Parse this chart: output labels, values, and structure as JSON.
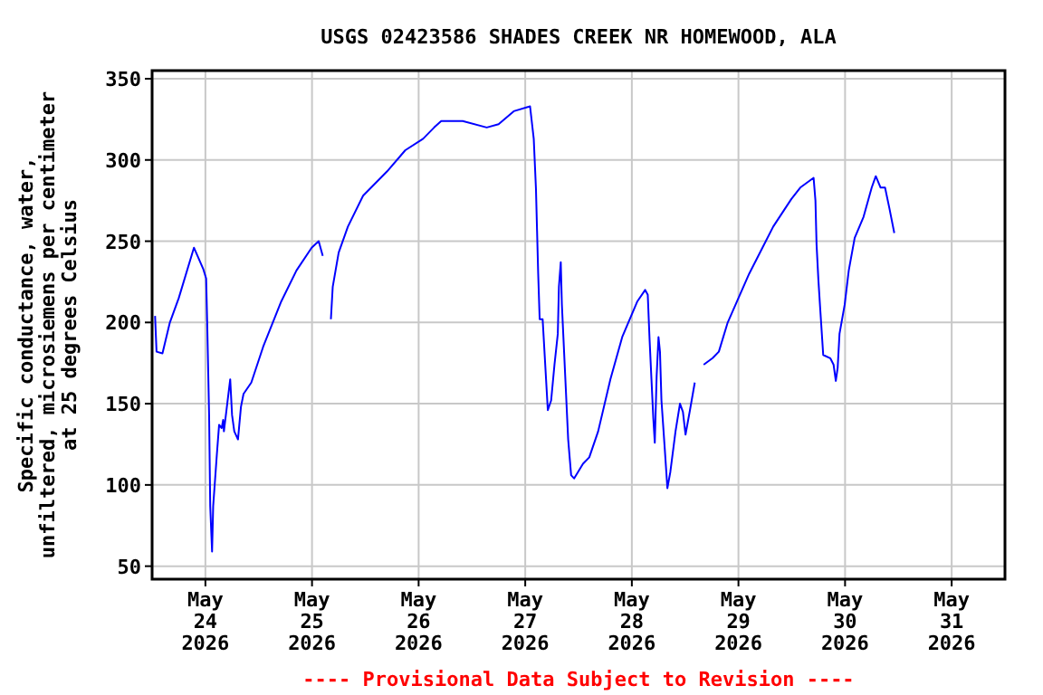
{
  "chart_data": {
    "type": "line",
    "title": "USGS 02423586 SHADES CREEK NR HOMEWOOD, ALA",
    "ylabel": "Specific conductance, water,\nunfiltered, microsiemens per centimeter\nat 25 degrees Celsius",
    "annotations": [
      "---- Provisional Data Subject to Revision ----"
    ],
    "x": [
      "2026-05-23T12:40",
      "2026-05-23T13:00",
      "2026-05-23T14:20",
      "2026-05-23T16:00",
      "2026-05-23T18:00",
      "2026-05-23T21:25",
      "2026-05-23T23:30",
      "2026-05-24T00:10",
      "2026-05-24T00:25",
      "2026-05-24T00:50",
      "2026-05-24T01:05",
      "2026-05-24T01:30",
      "2026-05-24T01:45",
      "2026-05-24T02:35",
      "2026-05-24T03:05",
      "2026-05-24T03:40",
      "2026-05-24T04:00",
      "2026-05-24T04:10",
      "2026-05-24T04:55",
      "2026-05-24T05:35",
      "2026-05-24T06:00",
      "2026-05-24T06:30",
      "2026-05-24T07:20",
      "2026-05-24T08:00",
      "2026-05-24T08:35",
      "2026-05-24T10:20",
      "2026-05-24T13:00",
      "2026-05-24T17:05",
      "2026-05-24T20:30",
      "2026-05-24T23:55",
      "2026-05-25T01:30",
      "2026-05-25T02:25",
      "2026-05-25T03:20",
      "2026-05-25T04:15",
      "2026-05-25T04:40",
      "2026-05-25T06:00",
      "2026-05-25T08:05",
      "2026-05-25T11:30",
      "2026-05-25T16:55",
      "2026-05-25T21:00",
      "2026-05-26T01:00",
      "2026-05-26T03:30",
      "2026-05-26T05:05",
      "2026-05-26T09:55",
      "2026-05-26T15:20",
      "2026-05-26T18:00",
      "2026-05-26T21:25",
      "2026-05-27T01:05",
      "2026-05-27T01:55",
      "2026-05-27T02:25",
      "2026-05-27T02:55",
      "2026-05-27T03:15",
      "2026-05-27T03:55",
      "2026-05-27T04:30",
      "2026-05-27T05:05",
      "2026-05-27T05:50",
      "2026-05-27T06:35",
      "2026-05-27T07:20",
      "2026-05-27T07:35",
      "2026-05-27T08:00",
      "2026-05-27T08:15",
      "2026-05-27T09:00",
      "2026-05-27T09:40",
      "2026-05-27T10:20",
      "2026-05-27T11:00",
      "2026-05-27T13:00",
      "2026-05-27T14:25",
      "2026-05-27T16:25",
      "2026-05-27T19:10",
      "2026-05-27T21:50",
      "2026-05-28T01:15",
      "2026-05-28T03:00",
      "2026-05-28T03:35",
      "2026-05-28T04:00",
      "2026-05-28T04:25",
      "2026-05-28T04:50",
      "2026-05-28T05:10",
      "2026-05-28T05:35",
      "2026-05-28T06:00",
      "2026-05-28T06:20",
      "2026-05-28T06:40",
      "2026-05-28T07:25",
      "2026-05-28T08:00",
      "2026-05-28T08:40",
      "2026-05-28T09:50",
      "2026-05-28T10:50",
      "2026-05-28T11:30",
      "2026-05-28T12:05",
      "2026-05-28T13:05",
      "2026-05-28T14:10",
      "2026-05-28T15:10",
      "2026-05-28T16:10",
      "2026-05-28T18:10",
      "2026-05-28T19:35",
      "2026-05-28T21:35",
      "2026-05-29T02:25",
      "2026-05-29T07:50",
      "2026-05-29T11:55",
      "2026-05-29T13:55",
      "2026-05-29T16:55",
      "2026-05-29T17:20",
      "2026-05-29T17:35",
      "2026-05-29T18:00",
      "2026-05-29T18:25",
      "2026-05-29T19:05",
      "2026-05-29T20:40",
      "2026-05-29T21:25",
      "2026-05-29T21:55",
      "2026-05-29T22:20",
      "2026-05-29T22:45",
      "2026-05-29T23:55",
      "2026-05-30T00:50",
      "2026-05-30T02:10",
      "2026-05-30T04:10",
      "2026-05-30T06:00",
      "2026-05-30T06:55",
      "2026-05-30T08:00",
      "2026-05-30T09:00",
      "2026-05-30T10:00",
      "2026-05-30T11:05"
    ],
    "series": [
      {
        "color": "#0000ff",
        "values": [
          204,
          182,
          181,
          200,
          215,
          246,
          233,
          227,
          198,
          143,
          87,
          59,
          87,
          119,
          137,
          135,
          140,
          133,
          150,
          165,
          143,
          133,
          128,
          148,
          156,
          163,
          185,
          213,
          232,
          246,
          250,
          241,
          null,
          202,
          222,
          243,
          259,
          278,
          293,
          306,
          313,
          320,
          324,
          324,
          320,
          322,
          330,
          333,
          313,
          282,
          230,
          202,
          202,
          174,
          146,
          152,
          174,
          193,
          222,
          237,
          211,
          167,
          128,
          106,
          104,
          113,
          117,
          133,
          165,
          191,
          213,
          220,
          217,
          189,
          165,
          141,
          126,
          167,
          191,
          182,
          152,
          122,
          98,
          108,
          133,
          150,
          145,
          131,
          146,
          163,
          null,
          174,
          178,
          182,
          200,
          230,
          259,
          276,
          283,
          289,
          275,
          248,
          226,
          208,
          180,
          178,
          174,
          164,
          172,
          193,
          211,
          232,
          252,
          265,
          283,
          290,
          283,
          283,
          270,
          255
        ]
      }
    ],
    "xlim": [
      "2026-05-23T12:00",
      "2026-05-31T12:00"
    ],
    "xticks": [
      {
        "value": "2026-05-24",
        "label": "May\n24\n2026"
      },
      {
        "value": "2026-05-25",
        "label": "May\n25\n2026"
      },
      {
        "value": "2026-05-26",
        "label": "May\n26\n2026"
      },
      {
        "value": "2026-05-27",
        "label": "May\n27\n2026"
      },
      {
        "value": "2026-05-28",
        "label": "May\n28\n2026"
      },
      {
        "value": "2026-05-29",
        "label": "May\n29\n2026"
      },
      {
        "value": "2026-05-30",
        "label": "May\n30\n2026"
      },
      {
        "value": "2026-05-31",
        "label": "May\n31\n2026"
      }
    ],
    "ylim": [
      42,
      355
    ],
    "yticks": [
      50,
      100,
      150,
      200,
      250,
      300,
      350
    ],
    "grid": true,
    "line_style": "solid",
    "marker": "none"
  }
}
